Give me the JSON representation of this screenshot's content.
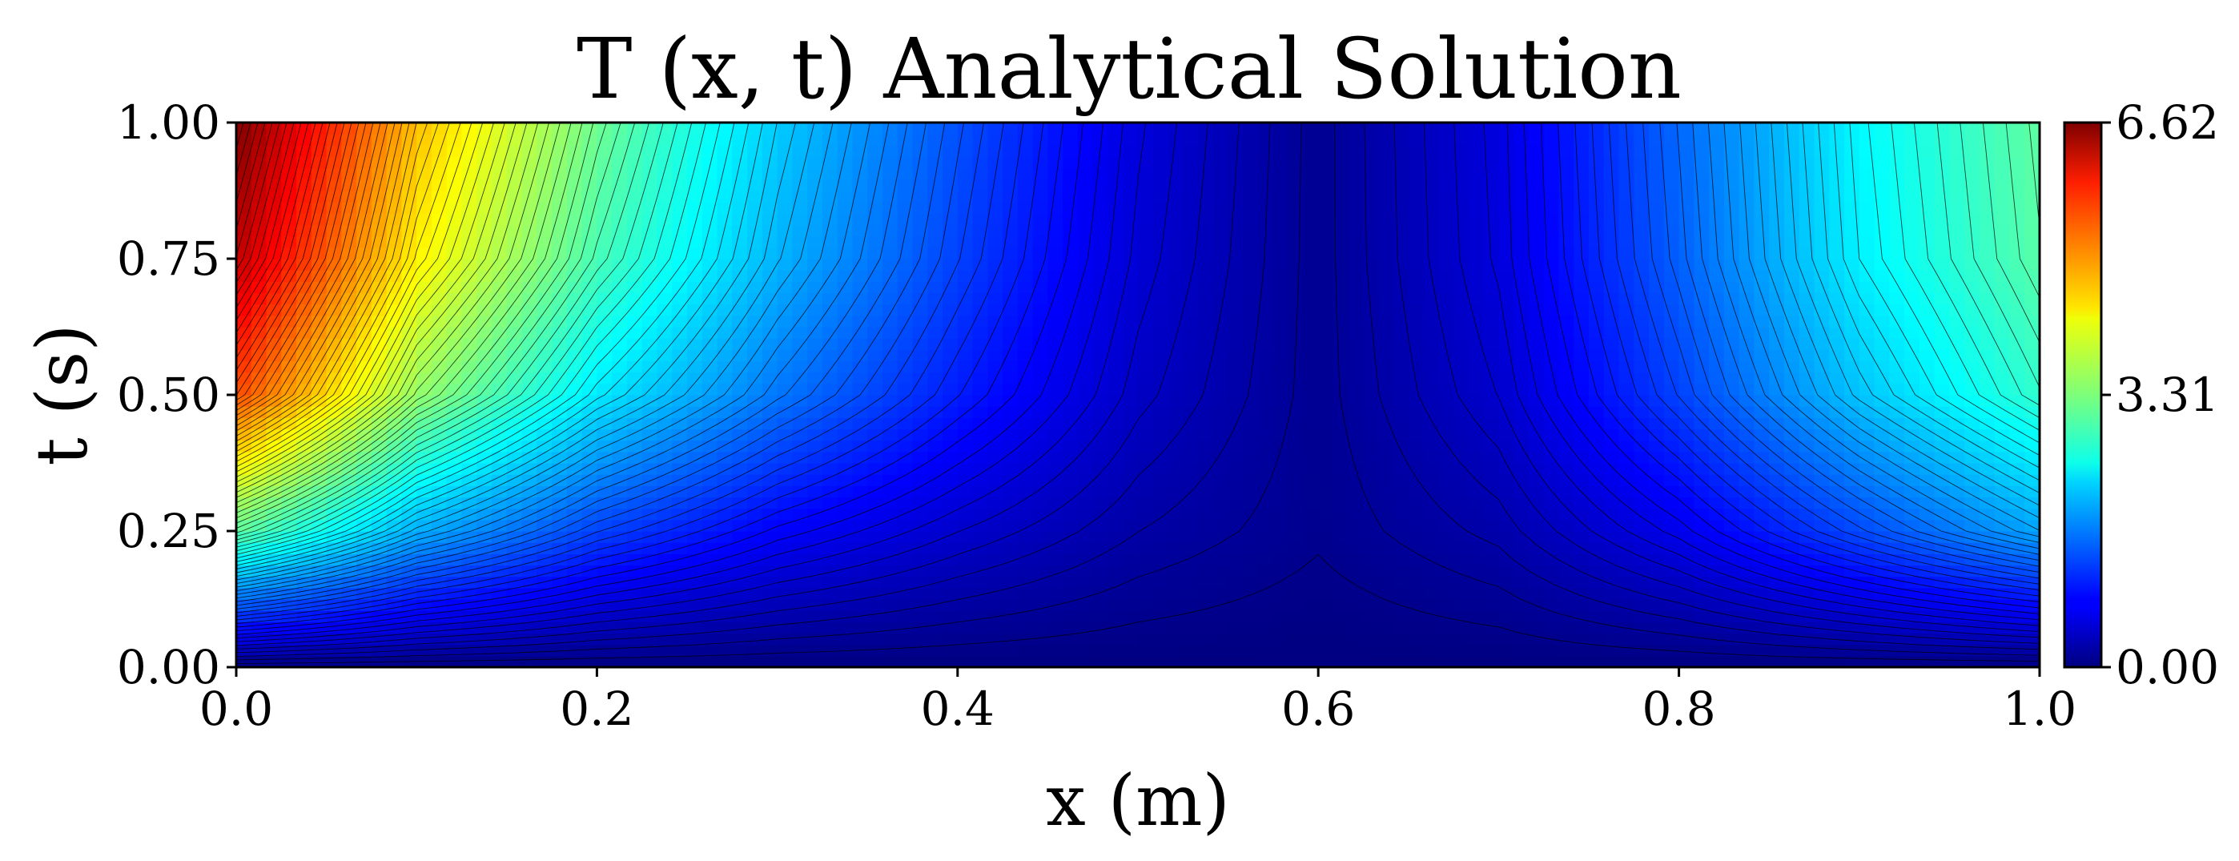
{
  "chart_data": {
    "type": "heatmap",
    "title": "T (x, t) Analytical Solution",
    "xlabel": "x (m)",
    "ylabel": "t (s)",
    "xlim": [
      0.0,
      1.0
    ],
    "ylim": [
      0.0,
      1.0
    ],
    "xticks": [
      "0.0",
      "0.2",
      "0.4",
      "0.6",
      "0.8",
      "1.0"
    ],
    "yticks": [
      "0.00",
      "0.25",
      "0.50",
      "0.75",
      "1.00"
    ],
    "colormap": "jet",
    "colorbar": {
      "min": 0.0,
      "max": 6.62,
      "ticks": [
        "0.00",
        "3.31",
        "6.62"
      ]
    },
    "contour_levels": 80,
    "contour_line_color": "#000000",
    "grid": false,
    "field_samples": {
      "x": [
        0.0,
        0.1,
        0.2,
        0.3,
        0.4,
        0.5,
        0.6,
        0.7,
        0.8,
        0.9,
        1.0
      ],
      "t": [
        0.0,
        0.25,
        0.5,
        0.75,
        1.0
      ],
      "T": [
        [
          0.0,
          0.0,
          0.0,
          0.0,
          0.0,
          0.0,
          0.0,
          0.0,
          0.0,
          0.0,
          0.0
        ],
        [
          3.1,
          1.95,
          1.25,
          0.8,
          0.5,
          0.25,
          0.1,
          0.28,
          0.7,
          1.3,
          1.9
        ],
        [
          5.3,
          3.45,
          2.35,
          1.6,
          1.0,
          0.45,
          0.12,
          0.5,
          1.25,
          2.1,
          2.8
        ],
        [
          6.2,
          4.2,
          2.95,
          2.0,
          1.25,
          0.55,
          0.12,
          0.6,
          1.45,
          2.4,
          3.05
        ],
        [
          6.62,
          4.55,
          3.2,
          2.15,
          1.35,
          0.6,
          0.12,
          0.62,
          1.5,
          2.45,
          3.1
        ]
      ]
    }
  }
}
